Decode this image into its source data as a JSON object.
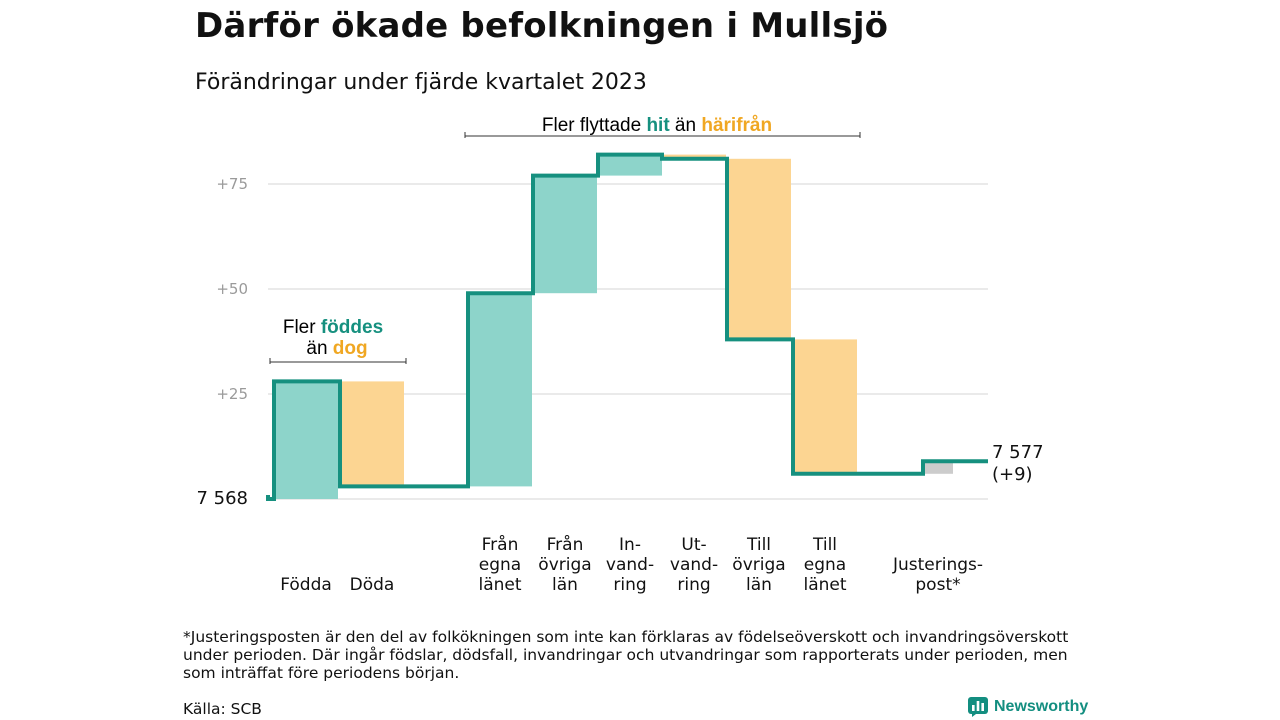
{
  "title": "Därför ökade befolkningen i Mullsjö",
  "subtitle": "Förändringar under fjärde kvartalet 2023",
  "colors": {
    "increase": "#8dd4ca",
    "decrease": "#fcd592",
    "adjustment": "#cccccc",
    "step_line": "#16907f",
    "accent_teal": "#16907f",
    "accent_orange": "#f0a722",
    "grid": "#dddddd"
  },
  "annotations": {
    "births": {
      "line1_prefix": "Fler ",
      "line1_highlight": "föddes",
      "line2_prefix": "än ",
      "line2_highlight": "dog"
    },
    "moves": {
      "prefix": "Fler flyttade ",
      "highlight1": "hit",
      "middle": " än ",
      "highlight2": "härifrån"
    }
  },
  "chart_data": {
    "type": "bar",
    "subtype": "waterfall",
    "start_value": 7568,
    "start_label": "7 568",
    "end_value": 7577,
    "end_label": "7 577",
    "end_change_label": "(+9)",
    "yticks": [
      "+25",
      "+50",
      "+75"
    ],
    "ytick_values": [
      25,
      50,
      75
    ],
    "ylim": [
      0,
      84
    ],
    "grid": true,
    "categories": [
      {
        "label": [
          "Födda"
        ],
        "change": 28,
        "kind": "increase"
      },
      {
        "label": [
          "Döda"
        ],
        "change": -25,
        "kind": "decrease"
      },
      {
        "label": [
          "Från",
          "egna",
          "länet"
        ],
        "change": 46,
        "kind": "increase"
      },
      {
        "label": [
          "Från",
          "övriga",
          "län"
        ],
        "change": 28,
        "kind": "increase"
      },
      {
        "label": [
          "In-",
          "vand-",
          "ring"
        ],
        "change": 5,
        "kind": "increase"
      },
      {
        "label": [
          "Ut-",
          "vand-",
          "ring"
        ],
        "change": -1,
        "kind": "decrease"
      },
      {
        "label": [
          "Till",
          "övriga",
          "län"
        ],
        "change": -43,
        "kind": "decrease"
      },
      {
        "label": [
          "Till",
          "egna",
          "länet"
        ],
        "change": -32,
        "kind": "decrease"
      },
      {
        "label": [
          "Justerings-",
          "post*"
        ],
        "change": 3,
        "kind": "adjustment"
      }
    ]
  },
  "footnote": "*Justeringsposten är den del av folkökningen som inte kan förklaras av födelseöverskott och invandringsöverskott under perioden. Där ingår födslar, dödsfall, invandringar och utvandringar som rapporterats under perioden, men som inträffat före periodens början.",
  "source": "Källa: SCB",
  "brand": "Newsworthy"
}
